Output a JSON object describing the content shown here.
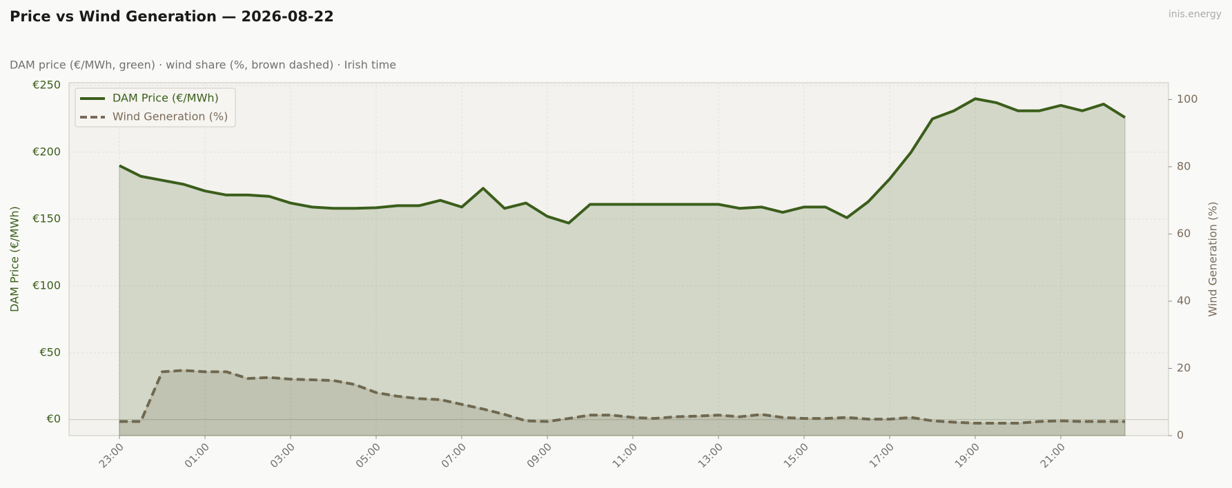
{
  "chart_data": {
    "type": "line",
    "title": "Price vs Wind Generation — 2026-08-22",
    "subtitle": "DAM price (€/MWh, green)  ·  wind share (%, brown dashed)  ·  Irish time",
    "watermark": "inis.energy",
    "ylabel": "DAM Price (€/MWh)",
    "y2label": "Wind Generation (%)",
    "categories": [
      "23:00",
      null,
      null,
      null,
      "01:00",
      null,
      null,
      null,
      "03:00",
      null,
      null,
      null,
      "05:00",
      null,
      null,
      null,
      "07:00",
      null,
      null,
      null,
      "09:00",
      null,
      null,
      null,
      "11:00",
      null,
      null,
      null,
      "13:00",
      null,
      null,
      null,
      "15:00",
      null,
      null,
      null,
      "17:00",
      null,
      null,
      null,
      "19:00",
      null,
      null,
      null,
      "21:00",
      null,
      null,
      null
    ],
    "series": [
      {
        "name": "DAM Price (€/MWh)",
        "color": "#3b5e1b",
        "fill": true,
        "linestyle": "solid",
        "values": [
          190,
          182,
          179,
          176,
          171,
          168,
          168,
          167,
          162,
          159,
          158,
          158,
          158.5,
          160,
          160,
          164,
          159,
          173,
          158,
          162,
          152,
          147,
          161,
          161,
          161,
          161,
          161,
          161,
          161,
          158,
          159,
          155,
          159,
          159,
          151,
          163,
          180,
          200,
          225,
          231,
          240,
          237,
          231,
          231,
          235,
          231,
          236,
          226
        ]
      },
      {
        "name": "Wind Generation (%)",
        "color": "#7a6b5b",
        "fill": true,
        "linestyle": "dashed",
        "axis": "y2",
        "values": [
          4.2,
          4.2,
          19,
          19.4,
          19,
          19,
          17,
          17.3,
          16.8,
          16.6,
          16.4,
          15.2,
          12.8,
          11.7,
          11,
          10.7,
          9.3,
          7.9,
          6.3,
          4.4,
          4.2,
          5.1,
          6.1,
          6.1,
          5.4,
          5.1,
          5.6,
          5.8,
          6.1,
          5.6,
          6.3,
          5.4,
          5.1,
          5.1,
          5.4,
          4.9,
          4.9,
          5.4,
          4.4,
          4.0,
          3.7,
          3.7,
          3.7,
          4.2,
          4.4,
          4.2,
          4.2,
          4.2
        ]
      }
    ],
    "ylim": [
      -12,
      252
    ],
    "yticks": [
      {
        "value": 0,
        "label": "€0"
      },
      {
        "value": 50,
        "label": "€50"
      },
      {
        "value": 100,
        "label": "€100"
      },
      {
        "value": 150,
        "label": "€150"
      },
      {
        "value": 200,
        "label": "€200"
      },
      {
        "value": 250,
        "label": "€250"
      }
    ],
    "y2lim": [
      0,
      105
    ],
    "y2ticks": [
      0,
      20,
      40,
      60,
      80,
      100
    ],
    "grid": true,
    "legend": "upper left"
  }
}
